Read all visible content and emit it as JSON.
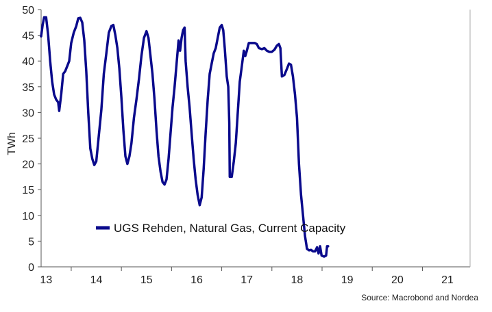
{
  "chart_data": {
    "type": "line",
    "title": "",
    "xlabel": "",
    "ylabel": "TWh",
    "ylim": [
      0,
      50
    ],
    "yticks": [
      0,
      5,
      10,
      15,
      20,
      25,
      30,
      35,
      40,
      45,
      50
    ],
    "xlim": [
      2012.9,
      2021.45
    ],
    "xtick_labels": [
      {
        "label": "13",
        "year": 2013
      },
      {
        "label": "14",
        "year": 2014
      },
      {
        "label": "15",
        "year": 2015
      },
      {
        "label": "16",
        "year": 2016
      },
      {
        "label": "17",
        "year": 2017
      },
      {
        "label": "18",
        "year": 2018
      },
      {
        "label": "19",
        "year": 2019
      },
      {
        "label": "20",
        "year": 2020
      },
      {
        "label": "21",
        "year": 2021
      }
    ],
    "grid": false,
    "legend_position": "lower-left",
    "series": [
      {
        "name": "UGS Rehden, Natural Gas, Current Capacity",
        "color": "#0a0a8c",
        "points": [
          [
            2012.9,
            44.8
          ],
          [
            2012.93,
            47.0
          ],
          [
            2012.96,
            48.5
          ],
          [
            2013.0,
            48.5
          ],
          [
            2013.04,
            45.0
          ],
          [
            2013.08,
            40.0
          ],
          [
            2013.12,
            36.0
          ],
          [
            2013.16,
            33.5
          ],
          [
            2013.2,
            32.5
          ],
          [
            2013.24,
            32.0
          ],
          [
            2013.26,
            30.3
          ],
          [
            2013.3,
            33.5
          ],
          [
            2013.34,
            37.5
          ],
          [
            2013.38,
            38.0
          ],
          [
            2013.42,
            39.0
          ],
          [
            2013.46,
            40.0
          ],
          [
            2013.5,
            43.5
          ],
          [
            2013.55,
            45.5
          ],
          [
            2013.6,
            46.8
          ],
          [
            2013.64,
            48.3
          ],
          [
            2013.68,
            48.4
          ],
          [
            2013.72,
            47.5
          ],
          [
            2013.76,
            44.0
          ],
          [
            2013.8,
            38.0
          ],
          [
            2013.84,
            30.0
          ],
          [
            2013.88,
            23.0
          ],
          [
            2013.92,
            21.0
          ],
          [
            2013.96,
            19.8
          ],
          [
            2014.0,
            20.5
          ],
          [
            2014.05,
            25.5
          ],
          [
            2014.1,
            30.5
          ],
          [
            2014.15,
            37.5
          ],
          [
            2014.2,
            41.5
          ],
          [
            2014.25,
            45.5
          ],
          [
            2014.3,
            46.8
          ],
          [
            2014.34,
            47.0
          ],
          [
            2014.38,
            45.0
          ],
          [
            2014.42,
            42.5
          ],
          [
            2014.46,
            38.5
          ],
          [
            2014.5,
            33.0
          ],
          [
            2014.54,
            26.5
          ],
          [
            2014.58,
            21.5
          ],
          [
            2014.62,
            20.0
          ],
          [
            2014.66,
            21.5
          ],
          [
            2014.7,
            24.0
          ],
          [
            2014.75,
            29.0
          ],
          [
            2014.8,
            32.5
          ],
          [
            2014.85,
            36.5
          ],
          [
            2014.9,
            41.0
          ],
          [
            2014.95,
            44.5
          ],
          [
            2015.0,
            45.8
          ],
          [
            2015.04,
            44.5
          ],
          [
            2015.08,
            41.0
          ],
          [
            2015.12,
            37.5
          ],
          [
            2015.16,
            32.5
          ],
          [
            2015.2,
            26.5
          ],
          [
            2015.24,
            21.5
          ],
          [
            2015.28,
            18.5
          ],
          [
            2015.32,
            16.5
          ],
          [
            2015.36,
            16.0
          ],
          [
            2015.4,
            17.0
          ],
          [
            2015.44,
            21.0
          ],
          [
            2015.48,
            26.0
          ],
          [
            2015.52,
            31.0
          ],
          [
            2015.56,
            35.0
          ],
          [
            2015.6,
            39.5
          ],
          [
            2015.64,
            44.0
          ],
          [
            2015.67,
            42.0
          ],
          [
            2015.7,
            44.5
          ],
          [
            2015.73,
            46.0
          ],
          [
            2015.76,
            46.5
          ],
          [
            2015.78,
            40.0
          ],
          [
            2015.82,
            35.0
          ],
          [
            2015.86,
            31.0
          ],
          [
            2015.9,
            26.0
          ],
          [
            2015.94,
            21.0
          ],
          [
            2015.98,
            17.0
          ],
          [
            2016.02,
            14.0
          ],
          [
            2016.06,
            12.0
          ],
          [
            2016.1,
            13.5
          ],
          [
            2016.14,
            19.0
          ],
          [
            2016.18,
            26.0
          ],
          [
            2016.22,
            32.5
          ],
          [
            2016.26,
            37.5
          ],
          [
            2016.3,
            39.5
          ],
          [
            2016.34,
            41.5
          ],
          [
            2016.38,
            42.5
          ],
          [
            2016.42,
            44.5
          ],
          [
            2016.46,
            46.5
          ],
          [
            2016.5,
            47.0
          ],
          [
            2016.53,
            46.0
          ],
          [
            2016.56,
            42.5
          ],
          [
            2016.6,
            37.0
          ],
          [
            2016.63,
            35.0
          ],
          [
            2016.65,
            28.0
          ],
          [
            2016.66,
            17.5
          ],
          [
            2016.7,
            17.5
          ],
          [
            2016.74,
            20.5
          ],
          [
            2016.78,
            24.0
          ],
          [
            2016.82,
            30.0
          ],
          [
            2016.86,
            36.0
          ],
          [
            2016.9,
            39.0
          ],
          [
            2016.94,
            42.0
          ],
          [
            2016.97,
            41.0
          ],
          [
            2017.0,
            42.0
          ],
          [
            2017.04,
            43.5
          ],
          [
            2017.1,
            43.5
          ],
          [
            2017.16,
            43.5
          ],
          [
            2017.2,
            43.3
          ],
          [
            2017.24,
            42.5
          ],
          [
            2017.3,
            42.3
          ],
          [
            2017.35,
            42.5
          ],
          [
            2017.4,
            42.0
          ],
          [
            2017.45,
            41.8
          ],
          [
            2017.5,
            41.8
          ],
          [
            2017.55,
            42.2
          ],
          [
            2017.6,
            43.0
          ],
          [
            2017.64,
            43.3
          ],
          [
            2017.67,
            42.5
          ],
          [
            2017.7,
            37.0
          ],
          [
            2017.75,
            37.3
          ],
          [
            2017.8,
            38.5
          ],
          [
            2017.84,
            39.5
          ],
          [
            2017.88,
            39.3
          ],
          [
            2017.92,
            37.0
          ],
          [
            2017.96,
            33.5
          ],
          [
            2018.0,
            29.0
          ],
          [
            2018.04,
            20.0
          ],
          [
            2018.08,
            14.0
          ],
          [
            2018.12,
            10.0
          ],
          [
            2018.16,
            6.0
          ],
          [
            2018.2,
            3.5
          ],
          [
            2018.24,
            3.2
          ],
          [
            2018.28,
            3.3
          ],
          [
            2018.32,
            3.0
          ],
          [
            2018.36,
            3.0
          ],
          [
            2018.4,
            3.8
          ],
          [
            2018.43,
            2.6
          ],
          [
            2018.46,
            4.0
          ],
          [
            2018.49,
            2.2
          ],
          [
            2018.54,
            2.0
          ],
          [
            2018.58,
            2.2
          ],
          [
            2018.6,
            4.0
          ],
          [
            2018.62,
            4.0
          ]
        ]
      }
    ],
    "source": "Source: Macrobond and Nordea"
  }
}
